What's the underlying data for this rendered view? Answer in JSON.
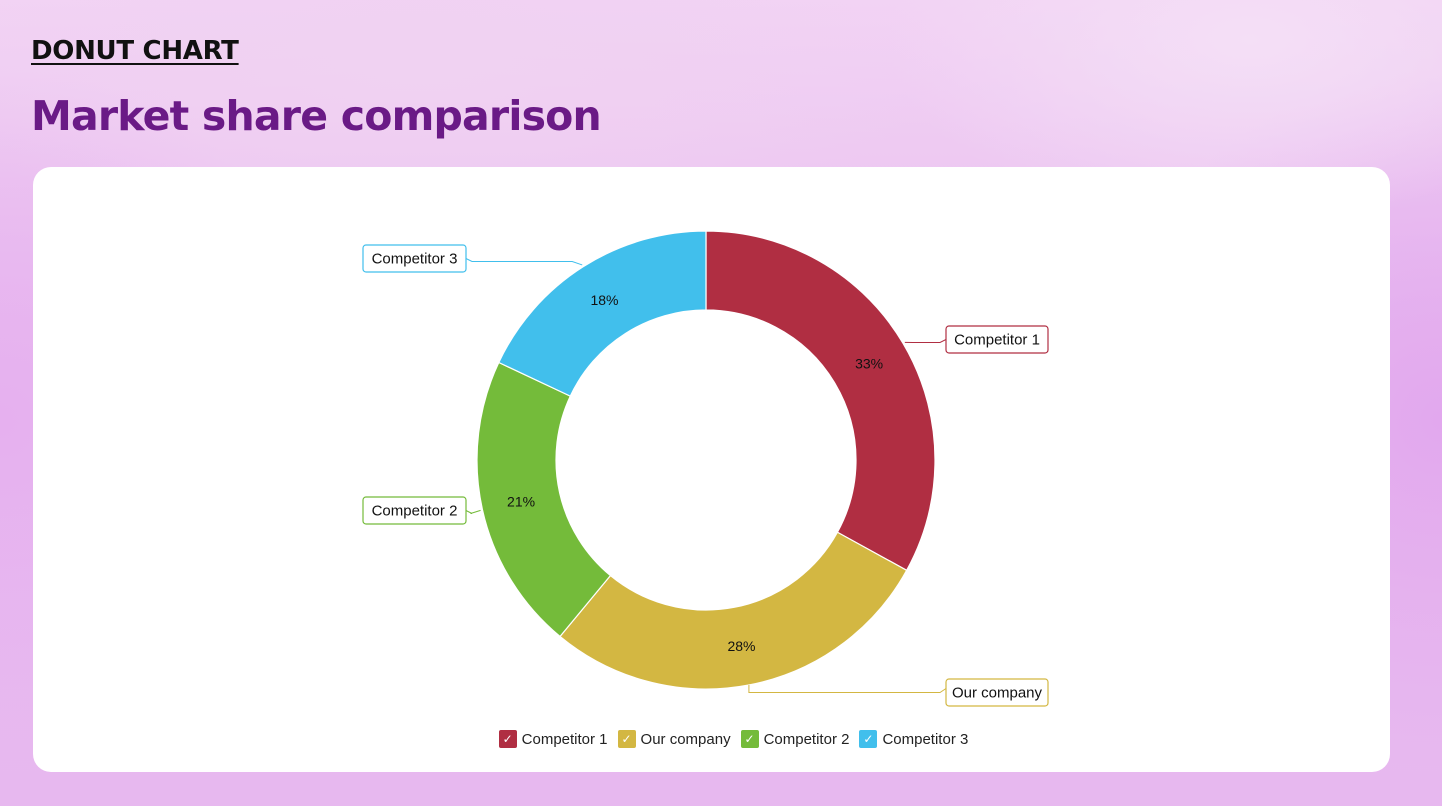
{
  "header": {
    "kicker": "DONUT CHART",
    "title": "Market share comparison"
  },
  "chart_data": {
    "type": "pie",
    "variant": "donut",
    "categories": [
      "Competitor 1",
      "Our company",
      "Competitor 2",
      "Competitor 3"
    ],
    "values": [
      33,
      28,
      21,
      18
    ],
    "value_labels": [
      "33%",
      "28%",
      "21%",
      "18%"
    ],
    "colors": [
      "#b02e42",
      "#d3b742",
      "#74bb3a",
      "#41bfec"
    ],
    "legend_position": "bottom",
    "legend_check_glyph": "✓"
  }
}
